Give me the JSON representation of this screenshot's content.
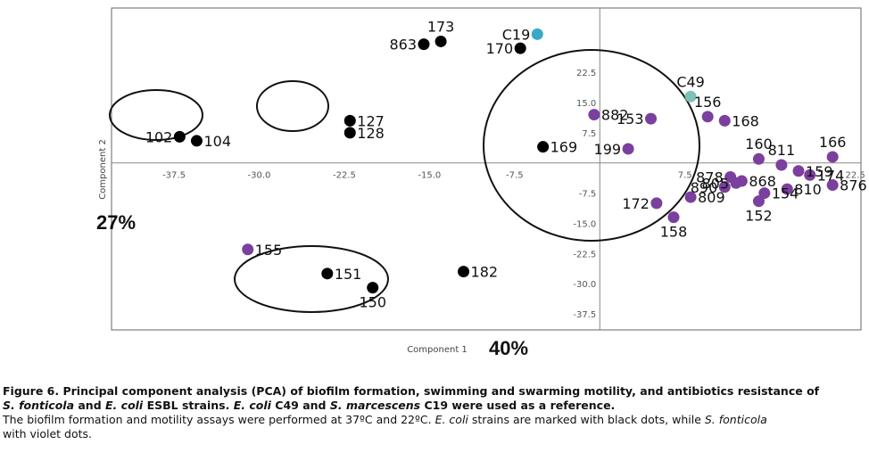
{
  "chart_data": {
    "type": "scatter",
    "title": "",
    "xlabel": "Component 1",
    "ylabel": "Component 2",
    "x_percent": "40%",
    "y_percent": "27%",
    "xlim": [
      -43,
      23
    ],
    "ylim": [
      -41.5,
      38.5
    ],
    "x_ticks": [
      -37.5,
      -30.0,
      -22.5,
      -15.0,
      -7.5,
      7.5,
      22.5
    ],
    "x_tick_labels": [
      "-37.5",
      "-30.0",
      "-22.5",
      "-15.0",
      "-7.5",
      "7.5",
      "22.5"
    ],
    "y_ticks": [
      22.5,
      15.0,
      7.5,
      -7.5,
      -15.0,
      -22.5,
      -30.0,
      -37.5
    ],
    "y_tick_labels": [
      "22.5",
      "15.0",
      "7.5",
      "-7.5",
      "-15.0",
      "-22.5",
      "-30.0",
      "-37.5"
    ],
    "grid": false,
    "colors": {
      "ecoli": "#000000",
      "sfonticola": "#7b3f9e",
      "c19": "#3aa8c9",
      "c49": "#7cc2b5"
    },
    "series": [
      {
        "key": "ecoli",
        "points": [
          {
            "label": "863",
            "x": -15.5,
            "y": 29.5
          },
          {
            "label": "173",
            "x": -14.0,
            "y": 30.2
          },
          {
            "label": "170",
            "x": -7.0,
            "y": 28.5
          },
          {
            "label": "127",
            "x": -22.0,
            "y": 10.5
          },
          {
            "label": "128",
            "x": -22.0,
            "y": 7.5
          },
          {
            "label": "102",
            "x": -37.0,
            "y": 6.5
          },
          {
            "label": "104",
            "x": -35.5,
            "y": 5.5
          },
          {
            "label": "169",
            "x": -5.0,
            "y": 4.0
          },
          {
            "label": "151",
            "x": -24.0,
            "y": -27.5
          },
          {
            "label": "150",
            "x": -20.0,
            "y": -31.0
          },
          {
            "label": "182",
            "x": -12.0,
            "y": -27.0
          }
        ]
      },
      {
        "key": "sfonticola",
        "points": [
          {
            "label": "882",
            "x": -0.5,
            "y": 12.0
          },
          {
            "label": "153",
            "x": 4.5,
            "y": 11.0
          },
          {
            "label": "156",
            "x": 9.5,
            "y": 11.5
          },
          {
            "label": "168",
            "x": 11.0,
            "y": 10.5
          },
          {
            "label": "199",
            "x": 2.5,
            "y": 3.5
          },
          {
            "label": "160",
            "x": 14.0,
            "y": 1.0
          },
          {
            "label": "811",
            "x": 16.0,
            "y": -0.5
          },
          {
            "label": "166",
            "x": 20.5,
            "y": 1.5
          },
          {
            "label": "159",
            "x": 17.5,
            "y": -2.0
          },
          {
            "label": "174",
            "x": 18.5,
            "y": -3.0
          },
          {
            "label": "878",
            "x": 11.5,
            "y": -3.5
          },
          {
            "label": "868",
            "x": 12.5,
            "y": -4.5
          },
          {
            "label": "805",
            "x": 12.0,
            "y": -5.0
          },
          {
            "label": "890",
            "x": 11.0,
            "y": -6.0
          },
          {
            "label": "810",
            "x": 16.5,
            "y": -6.5
          },
          {
            "label": "876",
            "x": 20.5,
            "y": -5.5
          },
          {
            "label": "154",
            "x": 14.5,
            "y": -7.5
          },
          {
            "label": "152",
            "x": 14.0,
            "y": -9.5
          },
          {
            "label": "172",
            "x": 5.0,
            "y": -10.0
          },
          {
            "label": "809",
            "x": 8.0,
            "y": -8.5
          },
          {
            "label": "158",
            "x": 6.5,
            "y": -13.5
          },
          {
            "label": "155",
            "x": -31.0,
            "y": -21.5
          }
        ]
      },
      {
        "key": "c19",
        "points": [
          {
            "label": "C19",
            "x": -5.5,
            "y": 32.0
          }
        ]
      },
      {
        "key": "c49",
        "points": [
          {
            "label": "C49",
            "x": 8.0,
            "y": 16.5
          }
        ]
      }
    ]
  },
  "caption": {
    "line1": "Figure 6. Principal component analysis (PCA) of biofilm formation, swimming and swarming motility, and antibiotics resistance of",
    "line2_a": "S.  fonticola",
    "line2_b": " and ",
    "line2_c": "E. coli",
    "line2_d": " ESBL strains. ",
    "line2_e": "E. coli",
    "line2_f": " C49 and ",
    "line2_g": "S. marcescens",
    "line2_h": " C19 were used as a reference.",
    "line3_a": "The biofilm formation and motility assays were performed at 37ºC and 22ºC. ",
    "line3_b": "E. coli",
    "line3_c": " strains are marked with black dots, while ",
    "line3_d": "S. fonticola",
    "line4": "with violet dots."
  }
}
